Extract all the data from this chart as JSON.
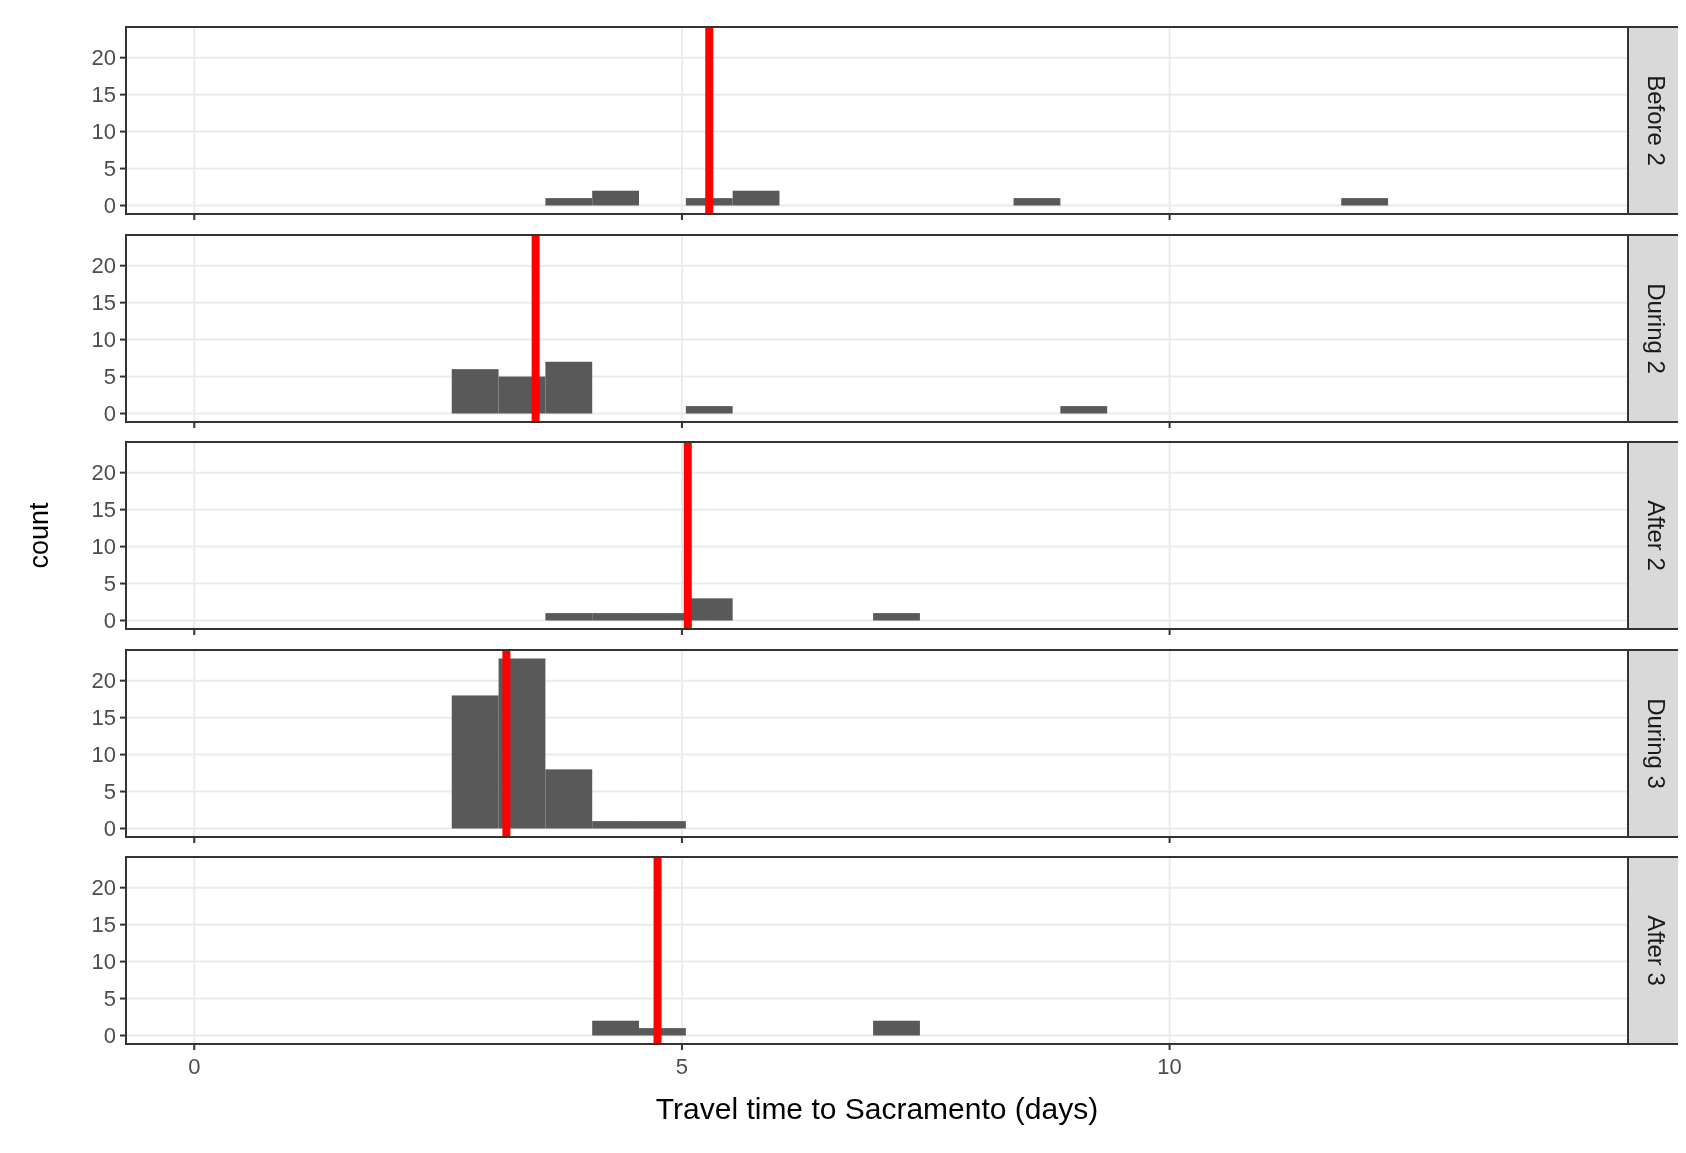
{
  "chart_data": [
    {
      "type": "histogram",
      "annotations": [
        "Before 2"
      ],
      "bins": [
        2.64,
        3.12,
        3.6,
        4.08,
        4.56,
        5.04,
        5.52,
        6.0,
        6.48,
        6.96,
        7.44,
        7.92,
        8.4,
        8.88,
        9.36,
        9.84,
        10.32,
        10.8,
        11.28,
        11.76,
        12.24
      ],
      "values": [
        0,
        0,
        1,
        2,
        0,
        1,
        2,
        0,
        0,
        0,
        0,
        0,
        1,
        0,
        0,
        0,
        0,
        0,
        0,
        1
      ],
      "color": "#595959",
      "xlim": [
        -0.7,
        14.7
      ],
      "xticks": [
        0,
        5,
        10
      ],
      "ylim": [
        -1.15,
        24.15
      ],
      "yticks": [
        0,
        5,
        10,
        15,
        20
      ],
      "grid": true,
      "tick_labels": "y",
      "ref_lines": [
        {
          "axis": "x",
          "value": 5.28,
          "color": "#ff0000"
        }
      ]
    },
    {
      "type": "histogram",
      "annotations": [
        "During 2"
      ],
      "bins": [
        2.64,
        3.12,
        3.6,
        4.08,
        4.56,
        5.04,
        5.52,
        6.0,
        6.48,
        6.96,
        7.44,
        7.92,
        8.4,
        8.88,
        9.36,
        9.84,
        10.32,
        10.8,
        11.28,
        11.76,
        12.24
      ],
      "values": [
        6,
        5,
        7,
        0,
        0,
        1,
        0,
        0,
        0,
        0,
        0,
        0,
        0,
        1,
        0,
        0,
        0,
        0,
        0,
        0
      ],
      "color": "#595959",
      "xlim": [
        -0.7,
        14.7
      ],
      "xticks": [
        0,
        5,
        10
      ],
      "ylim": [
        -1.15,
        24.15
      ],
      "yticks": [
        0,
        5,
        10,
        15,
        20
      ],
      "grid": true,
      "tick_labels": "y",
      "ref_lines": [
        {
          "axis": "x",
          "value": 3.5,
          "color": "#ff0000"
        }
      ]
    },
    {
      "type": "histogram",
      "annotations": [
        "After 2"
      ],
      "ylabel": "count",
      "bins": [
        2.64,
        3.12,
        3.6,
        4.08,
        4.56,
        5.04,
        5.52,
        6.0,
        6.48,
        6.96,
        7.44,
        7.92,
        8.4,
        8.88,
        9.36,
        9.84,
        10.32,
        10.8,
        11.28,
        11.76,
        12.24
      ],
      "values": [
        0,
        0,
        1,
        1,
        1,
        3,
        0,
        0,
        0,
        1,
        0,
        0,
        0,
        0,
        0,
        0,
        0,
        0,
        0,
        0
      ],
      "color": "#595959",
      "xlim": [
        -0.7,
        14.7
      ],
      "xticks": [
        0,
        5,
        10
      ],
      "ylim": [
        -1.15,
        24.15
      ],
      "yticks": [
        0,
        5,
        10,
        15,
        20
      ],
      "grid": true,
      "tick_labels": "y",
      "ref_lines": [
        {
          "axis": "x",
          "value": 5.06,
          "color": "#ff0000"
        }
      ]
    },
    {
      "type": "histogram",
      "annotations": [
        "During 3"
      ],
      "bins": [
        2.64,
        3.12,
        3.6,
        4.08,
        4.56,
        5.04,
        5.52,
        6.0,
        6.48,
        6.96,
        7.44,
        7.92,
        8.4,
        8.88,
        9.36,
        9.84,
        10.32,
        10.8,
        11.28,
        11.76,
        12.24
      ],
      "values": [
        18,
        23,
        8,
        1,
        1,
        0,
        0,
        0,
        0,
        0,
        0,
        0,
        0,
        0,
        0,
        0,
        0,
        0,
        0,
        0
      ],
      "color": "#595959",
      "xlim": [
        -0.7,
        14.7
      ],
      "xticks": [
        0,
        5,
        10
      ],
      "ylim": [
        -1.15,
        24.15
      ],
      "yticks": [
        0,
        5,
        10,
        15,
        20
      ],
      "grid": true,
      "tick_labels": "y",
      "ref_lines": [
        {
          "axis": "x",
          "value": 3.2,
          "color": "#ff0000"
        }
      ]
    },
    {
      "type": "histogram",
      "annotations": [
        "After 3"
      ],
      "xlabel": "Travel time to Sacramento (days)",
      "bins": [
        2.64,
        3.12,
        3.6,
        4.08,
        4.56,
        5.04,
        5.52,
        6.0,
        6.48,
        6.96,
        7.44,
        7.92,
        8.4,
        8.88,
        9.36,
        9.84,
        10.32,
        10.8,
        11.28,
        11.76,
        12.24
      ],
      "values": [
        0,
        0,
        0,
        2,
        1,
        0,
        0,
        0,
        0,
        2,
        0,
        0,
        0,
        0,
        0,
        0,
        0,
        0,
        0,
        0
      ],
      "color": "#595959",
      "xlim": [
        -0.7,
        14.7
      ],
      "xticks": [
        0,
        5,
        10
      ],
      "ylim": [
        -1.15,
        24.15
      ],
      "yticks": [
        0,
        5,
        10,
        15,
        20
      ],
      "grid": true,
      "ref_lines": [
        {
          "axis": "x",
          "value": 4.75,
          "color": "#ff0000"
        }
      ]
    }
  ]
}
